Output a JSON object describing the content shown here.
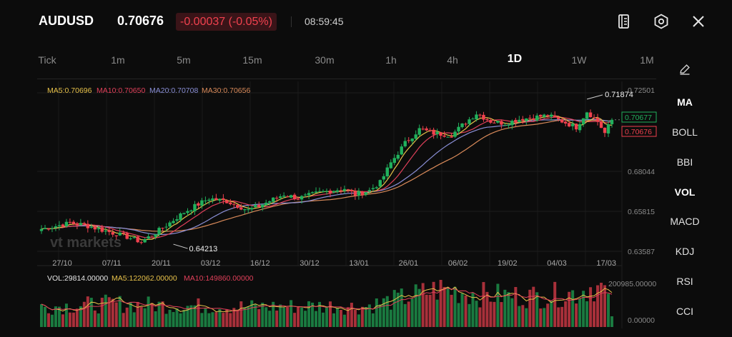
{
  "header": {
    "symbol": "AUDUSD",
    "price": "0.70676",
    "change": "-0.00037 (-0.05%)",
    "time": "08:59:45",
    "icons": [
      "document-icon",
      "settings-hex-icon",
      "close-icon"
    ]
  },
  "timeframes": [
    "Tick",
    "1m",
    "5m",
    "15m",
    "30m",
    "1h",
    "4h",
    "1D",
    "1W",
    "1M"
  ],
  "active_timeframe": "1D",
  "indicators": [
    "MA",
    "BOLL",
    "BBI",
    "VOL",
    "MACD",
    "KDJ",
    "RSI",
    "CCI"
  ],
  "ma_legend": {
    "ma5": "MA5:0.70696",
    "ma10": "MA10:0.70650",
    "ma20": "MA20:0.70708",
    "ma30": "MA30:0.70656"
  },
  "vol_legend": {
    "vol": "VOL:29814.00000",
    "ma5": "MA5:122062.00000",
    "ma10": "MA10:149860.00000"
  },
  "watermark": "vt markets",
  "colors": {
    "up": "#21b05c",
    "down": "#f0414e",
    "ma5": "#e8c24a",
    "ma10": "#e0405a",
    "ma20": "#8a8fd6",
    "ma30": "#d98a5a"
  },
  "chart_data": {
    "type": "candlestick",
    "x_tick_labels": [
      "27/10",
      "07/11",
      "20/11",
      "03/12",
      "16/12",
      "30/12",
      "13/01",
      "26/01",
      "06/02",
      "19/02",
      "04/03",
      "17/03"
    ],
    "price_axis_labels": [
      "0.72501",
      "0.68044",
      "0.65815",
      "0.63587"
    ],
    "price_range": [
      0.6337,
      0.7262
    ],
    "high_marker": "0.71874",
    "low_marker": "0.64213",
    "last_price_tag": "0.70676",
    "prev_price_tag": "0.70677",
    "volume_axis_labels": [
      "200985.00000",
      "0.00000"
    ],
    "volume_range": [
      0,
      205000
    ],
    "price_path_keypoints": [
      [
        0,
        0.6515
      ],
      [
        8,
        0.6545
      ],
      [
        12,
        0.6535
      ],
      [
        18,
        0.6505
      ],
      [
        24,
        0.6475
      ],
      [
        28,
        0.645
      ],
      [
        34,
        0.652
      ],
      [
        40,
        0.66
      ],
      [
        47,
        0.667
      ],
      [
        52,
        0.6655
      ],
      [
        58,
        0.661
      ],
      [
        62,
        0.664
      ],
      [
        68,
        0.669
      ],
      [
        72,
        0.667
      ],
      [
        78,
        0.67
      ],
      [
        85,
        0.672
      ],
      [
        88,
        0.669
      ],
      [
        92,
        0.671
      ],
      [
        95,
        0.675
      ],
      [
        98,
        0.685
      ],
      [
        102,
        0.695
      ],
      [
        106,
        0.702
      ],
      [
        110,
        0.7
      ],
      [
        115,
        0.699
      ],
      [
        118,
        0.704
      ],
      [
        122,
        0.71
      ],
      [
        126,
        0.706
      ],
      [
        130,
        0.705
      ],
      [
        134,
        0.707
      ],
      [
        138,
        0.708
      ],
      [
        142,
        0.709
      ],
      [
        146,
        0.706
      ],
      [
        150,
        0.703
      ],
      [
        153,
        0.711
      ],
      [
        156,
        0.706
      ],
      [
        158,
        0.7
      ],
      [
        160,
        0.7068
      ]
    ],
    "volume_keypoints": [
      [
        0,
        95000
      ],
      [
        20,
        110000
      ],
      [
        40,
        100000
      ],
      [
        60,
        95000
      ],
      [
        80,
        100000
      ],
      [
        90,
        95000
      ],
      [
        100,
        130000
      ],
      [
        112,
        180000
      ],
      [
        125,
        150000
      ],
      [
        140,
        145000
      ],
      [
        150,
        160000
      ],
      [
        155,
        195000
      ],
      [
        158,
        170000
      ],
      [
        160,
        60000
      ]
    ]
  }
}
